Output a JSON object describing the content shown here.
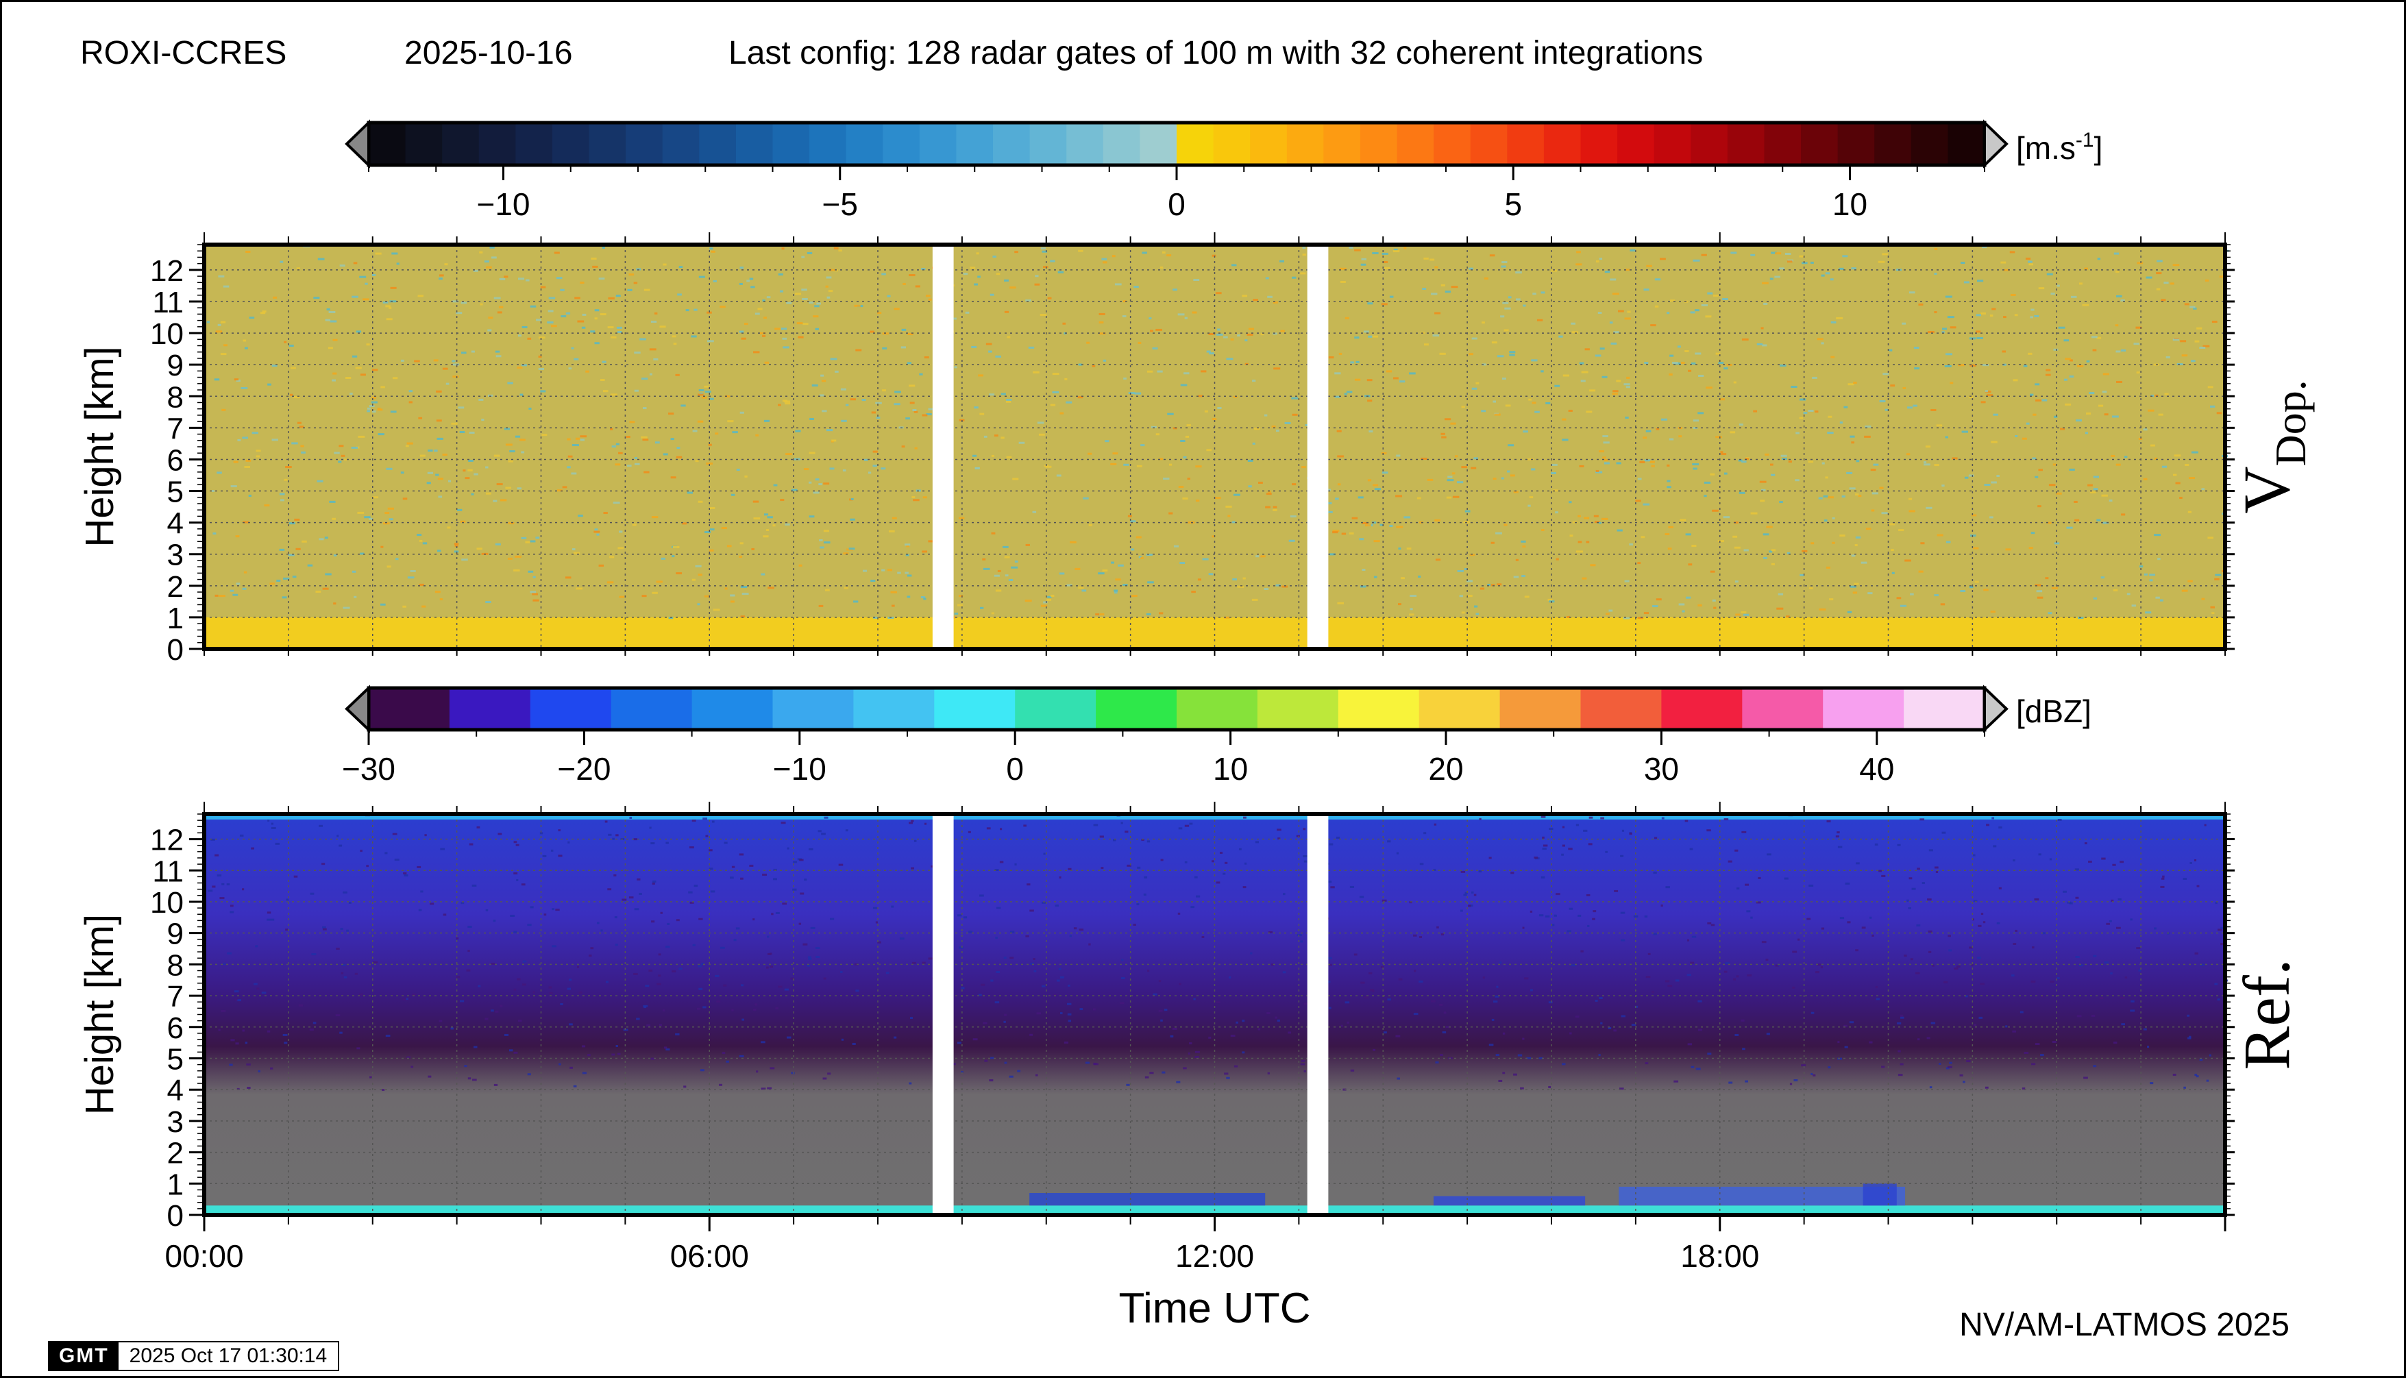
{
  "header": {
    "station": "ROXI-CCRES",
    "date": "2025-10-16",
    "config": "Last config: 128 radar gates of 100 m with 32 coherent integrations"
  },
  "footer": {
    "credit": "NV/AM-LATMOS 2025",
    "gmt_logo": "GMT",
    "timestamp": "2025 Oct 17 01:30:14"
  },
  "chart_data": [
    {
      "type": "heatmap",
      "title": "",
      "panel_label_main": "V",
      "panel_label_sub": "Dop.",
      "xlabel": "",
      "ylabel": "Height [km]",
      "x_range_hours": [
        0,
        24
      ],
      "ylim": [
        0,
        12.8
      ],
      "y_ticks": [
        0,
        1,
        2,
        3,
        4,
        5,
        6,
        7,
        8,
        9,
        10,
        11,
        12
      ],
      "grid": true,
      "data_gaps_hours": [
        [
          8.65,
          8.9
        ],
        [
          13.1,
          13.35
        ]
      ],
      "colorbar": {
        "unit_base": "[m.s",
        "unit_sup": "-1",
        "unit_end": "]",
        "range": [
          -12,
          12
        ],
        "ticks": [
          -10,
          -5,
          0,
          5,
          10
        ],
        "tick_labels": [
          "−10",
          "−5",
          "0",
          "5",
          "10"
        ],
        "colors": [
          "#0a0a12",
          "#0d1120",
          "#10172e",
          "#121c3c",
          "#13234b",
          "#142b5a",
          "#153468",
          "#163d78",
          "#174786",
          "#175294",
          "#185da2",
          "#1a68af",
          "#1d74bb",
          "#2380c5",
          "#2c8ccd",
          "#3797d2",
          "#44a2d5",
          "#53acd6",
          "#63b5d5",
          "#76bed4",
          "#8ac6d2",
          "#9ecdd0",
          "#f6d30a",
          "#f9c70c",
          "#fbb90e",
          "#fcaa10",
          "#fd9b12",
          "#fd8a13",
          "#fc7814",
          "#fa6414",
          "#f65013",
          "#f13c11",
          "#ea2810",
          "#e0160e",
          "#d30b0d",
          "#c2070c",
          "#ae050b",
          "#99040a",
          "#820309",
          "#6b0308",
          "#550307",
          "#3f0306",
          "#2b0305",
          "#1a0204"
        ]
      },
      "series": [
        {
          "name": "",
          "description_layer": "surface",
          "y_range": [
            0,
            1.0
          ],
          "mean_color": "#f2cd1f"
        },
        {
          "name": "",
          "description_layer": "noise",
          "y_range": [
            1.0,
            12.8
          ],
          "mean_color": "#c6b754"
        }
      ]
    },
    {
      "type": "heatmap",
      "title": "",
      "panel_label": "Ref.",
      "xlabel": "Time UTC",
      "ylabel": "Height [km]",
      "x_range_hours": [
        0,
        24
      ],
      "x_ticks_hours": [
        0,
        6,
        12,
        18
      ],
      "x_tick_labels": [
        "00:00",
        "06:00",
        "12:00",
        "18:00"
      ],
      "ylim": [
        0,
        12.8
      ],
      "y_ticks": [
        0,
        1,
        2,
        3,
        4,
        5,
        6,
        7,
        8,
        9,
        10,
        11,
        12
      ],
      "grid": true,
      "data_gaps_hours": [
        [
          8.65,
          8.9
        ],
        [
          13.1,
          13.35
        ]
      ],
      "colorbar": {
        "unit": "[dBZ]",
        "range": [
          -30,
          45
        ],
        "ticks": [
          -30,
          -20,
          -10,
          0,
          10,
          20,
          30,
          40
        ],
        "tick_labels": [
          "−30",
          "−20",
          "−10",
          "0",
          "10",
          "20",
          "30",
          "40"
        ],
        "colors": [
          "#3a0a4a",
          "#3a18c0",
          "#1f48ef",
          "#1a6de8",
          "#1f8ae8",
          "#3aa8ee",
          "#43c3f2",
          "#3ee8f6",
          "#33e0b0",
          "#2ee84a",
          "#86e23a",
          "#bde83a",
          "#f8f33a",
          "#f8d23a",
          "#f59a3a",
          "#f25e3a",
          "#f22040",
          "#f55aa8",
          "#f7a0ef",
          "#f9d8f5"
        ]
      }
    }
  ]
}
